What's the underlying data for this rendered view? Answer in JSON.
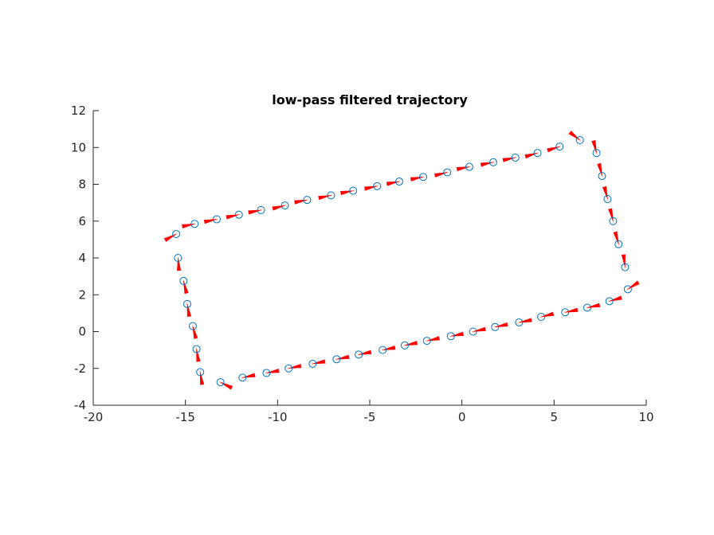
{
  "chart_data": {
    "type": "scatter",
    "title": "low-pass filtered trajectory",
    "xlabel": "",
    "ylabel": "",
    "xlim": [
      -20,
      10
    ],
    "ylim": [
      -4,
      12
    ],
    "xticks": [
      -20,
      -15,
      -10,
      -5,
      0,
      5,
      10
    ],
    "xtick_labels": [
      "-20",
      "-15",
      "-10",
      "-5",
      "0",
      "5",
      "10"
    ],
    "yticks": [
      -4,
      -2,
      0,
      2,
      4,
      6,
      8,
      10,
      12
    ],
    "ytick_labels": [
      "-4",
      "-2",
      "0",
      "2",
      "4",
      "6",
      "8",
      "10",
      "12"
    ],
    "grid": false,
    "box": false,
    "colors": {
      "marker": "#0072bd",
      "arrow": "#ff0000",
      "axis": "#262626"
    },
    "series": [
      {
        "marker": "open-circle",
        "arrows": true,
        "points": [
          [
            -15.5,
            5.3
          ],
          [
            -14.5,
            5.85
          ],
          [
            -13.3,
            6.1
          ],
          [
            -12.1,
            6.35
          ],
          [
            -10.9,
            6.6
          ],
          [
            -9.6,
            6.85
          ],
          [
            -8.4,
            7.15
          ],
          [
            -7.1,
            7.4
          ],
          [
            -5.9,
            7.65
          ],
          [
            -4.6,
            7.9
          ],
          [
            -3.4,
            8.15
          ],
          [
            -2.1,
            8.4
          ],
          [
            -0.8,
            8.65
          ],
          [
            0.4,
            8.95
          ],
          [
            1.7,
            9.2
          ],
          [
            2.9,
            9.45
          ],
          [
            4.1,
            9.7
          ],
          [
            5.3,
            10.05
          ],
          [
            6.4,
            10.4
          ],
          [
            7.3,
            9.7
          ],
          [
            7.6,
            8.45
          ],
          [
            7.9,
            7.2
          ],
          [
            8.2,
            6.0
          ],
          [
            8.5,
            4.75
          ],
          [
            8.85,
            3.5
          ],
          [
            9.0,
            2.3
          ],
          [
            8.0,
            1.65
          ],
          [
            6.8,
            1.3
          ],
          [
            5.6,
            1.05
          ],
          [
            4.3,
            0.8
          ],
          [
            3.1,
            0.5
          ],
          [
            1.8,
            0.25
          ],
          [
            0.6,
            0.0
          ],
          [
            -0.6,
            -0.25
          ],
          [
            -1.9,
            -0.5
          ],
          [
            -3.1,
            -0.75
          ],
          [
            -4.3,
            -1.0
          ],
          [
            -5.6,
            -1.25
          ],
          [
            -6.8,
            -1.5
          ],
          [
            -8.1,
            -1.75
          ],
          [
            -9.4,
            -2.0
          ],
          [
            -10.6,
            -2.25
          ],
          [
            -11.9,
            -2.5
          ],
          [
            -13.1,
            -2.75
          ],
          [
            -14.2,
            -2.2
          ],
          [
            -14.4,
            -0.95
          ],
          [
            -14.6,
            0.3
          ],
          [
            -14.9,
            1.5
          ],
          [
            -15.1,
            2.75
          ],
          [
            -15.4,
            4.0
          ]
        ]
      }
    ]
  }
}
